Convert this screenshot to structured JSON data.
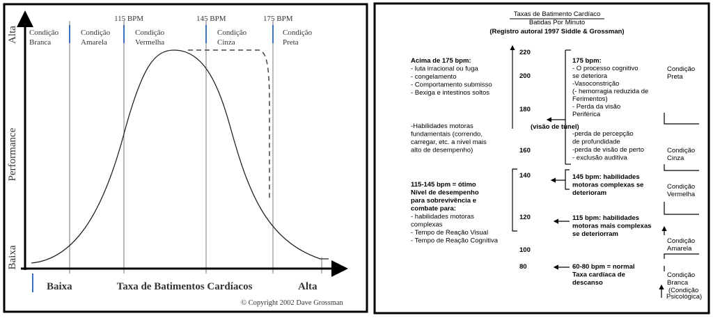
{
  "left_chart": {
    "y_axis": {
      "high": "Alta",
      "label": "Performance",
      "low": "Baixa"
    },
    "x_axis": {
      "low": "Baixa",
      "label": "Taxa de Batimentos Cardíacos",
      "high": "Alta"
    },
    "bpm_markers": [
      "115 BPM",
      "145 BPM",
      "175 BPM"
    ],
    "zones": [
      [
        "Condição",
        "Branca"
      ],
      [
        "Condição",
        "Amarela"
      ],
      [
        "Condição",
        "Vermelha"
      ],
      [
        "Condição",
        "Cinza"
      ],
      [
        "Condição",
        "Preta"
      ]
    ],
    "copyright": "© Copyright 2002 Dave Grossman"
  },
  "right_diagram": {
    "title": "Taxas de Batimento Cardíaco",
    "subtitle": "Batidas Por Minuto",
    "source": "(Registro autoral 1997 Siddle & Grossman)",
    "scale": [
      220,
      200,
      180,
      160,
      140,
      120,
      100,
      80
    ],
    "left_notes": [
      [
        "Acima de 175 bpm:",
        "- luta irracional ou fuga",
        "- congelamento",
        "- Comportamento submisso",
        "- Bexiga e intestinos soltos"
      ],
      [
        "-Habilidades motoras",
        "fundamentais (correndo,",
        "carregar, etc. a nível mais",
        "alto de desempenho)"
      ],
      [
        "115-145 bpm = ótimo",
        "Nível de desempenho",
        "para sobrevivência e",
        "combate para:",
        "- habilidades motoras",
        "complexas",
        "- Tempo de Reação Visual",
        "- Tempo de Reação Cognitiva"
      ]
    ],
    "right_notes": [
      [
        "175 bpm:",
        "- O processo cognitivo",
        "se deteriora",
        "-Vasoconstrição",
        "(- hemorragia reduzida de",
        "Ferimentos)",
        "- Perda da visão",
        "Periférica"
      ],
      [
        "-perda de percepção",
        "de profundidade",
        "-perda de visão de perto",
        "- exclusão auditiva"
      ],
      [
        "145 bpm: habilidades",
        "motoras complexas se",
        "deterioram"
      ],
      [
        "115 bpm: habilidades",
        "motoras mais complexas",
        "se deteriorram"
      ],
      [
        "60-80 bpm = normal",
        "Taxa cardíaca de",
        "descanso"
      ]
    ],
    "tunnel_vision": "(visão de túnel)",
    "conditions": [
      [
        "Condição",
        "Preta"
      ],
      [
        "Condição",
        "Cinza"
      ],
      [
        "Condição",
        "Vermelha"
      ],
      [
        "Condição",
        "Amarela"
      ],
      [
        "Condição",
        "Branca"
      ]
    ],
    "condition_note": [
      "(Condição",
      "Psicológica)"
    ]
  }
}
